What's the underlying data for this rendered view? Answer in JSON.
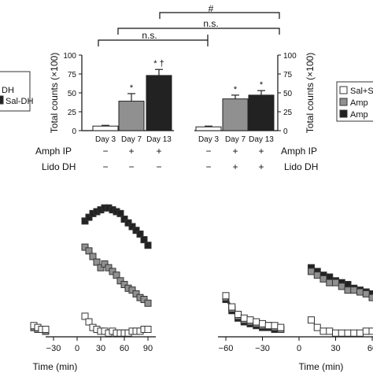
{
  "chart_data": [
    {
      "type": "bar",
      "panel": "left",
      "ylabel": "Total counts (×100)",
      "ylim": [
        0,
        100
      ],
      "yticks": [
        0,
        25,
        50,
        75,
        100
      ],
      "categories": [
        "Day 3",
        "Day 7",
        "Day 13"
      ],
      "values": [
        6,
        39,
        73
      ],
      "errors": [
        1,
        10,
        8
      ],
      "fills": [
        "#ffffff",
        "#909090",
        "#222222"
      ],
      "annotations": [
        "",
        "*",
        "* †"
      ],
      "row_labels": [
        "Amph IP",
        "Lido DH"
      ],
      "amph": [
        "−",
        "+",
        "+"
      ],
      "lido": [
        "−",
        "−",
        "−"
      ]
    },
    {
      "type": "bar",
      "panel": "right",
      "ylabel": "Total counts (×100)",
      "ylim": [
        0,
        100
      ],
      "yticks": [
        0,
        25,
        50,
        75,
        100
      ],
      "categories": [
        "Day 3",
        "Day 7",
        "Day 13"
      ],
      "values": [
        5,
        42,
        47
      ],
      "errors": [
        1,
        5,
        6
      ],
      "fills": [
        "#ffffff",
        "#909090",
        "#222222"
      ],
      "annotations": [
        "",
        "*",
        "*"
      ],
      "row_labels": [
        "Amph IP",
        "Lido DH"
      ],
      "amph": [
        "−",
        "+",
        "+"
      ],
      "lido": [
        "−",
        "+",
        "+"
      ]
    },
    {
      "type": "line",
      "panel": "bottom-left",
      "xlabel": "Time (min)",
      "xticks_shown": [
        "−30",
        "0",
        "30",
        "60",
        "90"
      ],
      "series": [
        {
          "x": [
            -55,
            -50,
            -45,
            -40
          ],
          "y": [
            5,
            4,
            4,
            3
          ]
        },
        {
          "x": [
            -55,
            -50,
            -45,
            -40
          ],
          "y": [
            5,
            4,
            4,
            3
          ]
        },
        {
          "x": [
            -55,
            -50,
            -45,
            -40
          ],
          "y": [
            6,
            5,
            4,
            4
          ]
        },
        {
          "x": [
            10,
            15,
            20,
            25,
            30,
            35,
            40,
            45,
            50,
            55,
            60,
            65,
            70,
            75,
            80,
            85,
            90
          ],
          "y": [
            62,
            64,
            66,
            67,
            68,
            69,
            69,
            68,
            67,
            66,
            63,
            61,
            59,
            57,
            55,
            52,
            49
          ]
        },
        {
          "x": [
            10,
            15,
            20,
            25,
            30,
            35,
            40,
            45,
            50,
            55,
            60,
            65,
            70,
            75,
            80,
            85,
            90
          ],
          "y": [
            48,
            46,
            43,
            40,
            37,
            39,
            37,
            35,
            33,
            30,
            28,
            26,
            25,
            23,
            21,
            20,
            18
          ]
        },
        {
          "x": [
            10,
            15,
            20,
            25,
            30,
            35,
            40,
            45,
            50,
            55,
            60,
            65,
            70,
            75,
            80,
            85,
            90
          ],
          "y": [
            11,
            8,
            5,
            4,
            3,
            3,
            2,
            3,
            2,
            2,
            2,
            2,
            3,
            3,
            3,
            4,
            4
          ]
        }
      ]
    },
    {
      "type": "line",
      "panel": "bottom-right",
      "xlabel": "Time (min)",
      "xticks_shown": [
        "−60",
        "−30",
        "0",
        "30",
        "60"
      ],
      "series": [
        {
          "x": [
            -60,
            -55,
            -50,
            -45,
            -40,
            -35,
            -30,
            -25,
            -20,
            -15
          ],
          "y": [
            20,
            14,
            10,
            8,
            7,
            6,
            5,
            5,
            4,
            4
          ]
        },
        {
          "x": [
            -60,
            -55,
            -50,
            -45,
            -40,
            -35,
            -30,
            -25,
            -20,
            -15
          ],
          "y": [
            21,
            15,
            11,
            9,
            8,
            7,
            6,
            6,
            5,
            4
          ]
        },
        {
          "x": [
            -60,
            -55,
            -50,
            -45,
            -40,
            -35,
            -30,
            -25,
            -20,
            -15
          ],
          "y": [
            22,
            16,
            12,
            10,
            9,
            8,
            7,
            6,
            6,
            5
          ]
        },
        {
          "x": [
            10,
            15,
            20,
            25,
            30,
            35,
            40,
            45,
            50,
            55,
            60
          ],
          "y": [
            37,
            35,
            33,
            32,
            30,
            29,
            28,
            26,
            25,
            24,
            23
          ]
        },
        {
          "x": [
            10,
            15,
            20,
            25,
            30,
            35,
            40,
            45,
            50,
            55,
            60
          ],
          "y": [
            35,
            33,
            31,
            29,
            29,
            27,
            25,
            25,
            24,
            23,
            21
          ]
        },
        {
          "x": [
            10,
            15,
            20,
            25,
            30,
            35,
            40,
            45,
            50,
            55,
            60
          ],
          "y": [
            9,
            5,
            3,
            3,
            2,
            2,
            2,
            2,
            2,
            3,
            3
          ]
        }
      ]
    }
  ],
  "legend_left": [
    "DH",
    "Sal-DH"
  ],
  "legend_right": [
    "Sal+S",
    "Amp",
    "Amp"
  ],
  "comparison_labels": [
    "#",
    "n.s.",
    "n.s."
  ],
  "colors": {
    "white_fill": "#ffffff",
    "gray_fill": "#909090",
    "black_fill": "#222222",
    "stroke": "#333333"
  }
}
